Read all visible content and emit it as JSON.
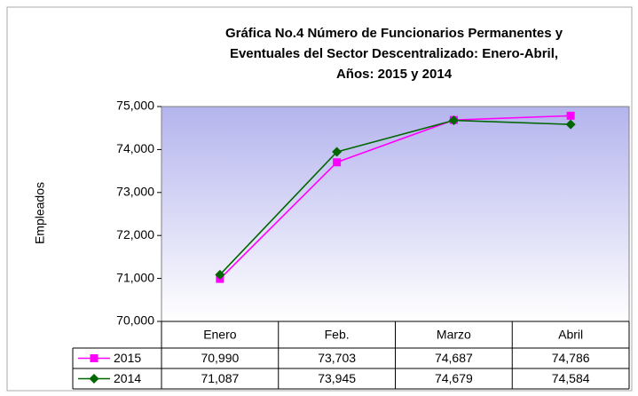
{
  "chart_data": {
    "type": "line",
    "title": [
      "Gráfica No.4  Número de Funcionarios Permanentes y",
      "Eventuales del Sector Descentralizado: Enero-Abril,",
      "Años: 2015 y 2014"
    ],
    "y_label": "Empleados",
    "categories": [
      "Enero",
      "Feb.",
      "Marzo",
      "Abril"
    ],
    "series": [
      {
        "name": "2015",
        "color": "#ff00ff",
        "marker": "square",
        "values": [
          70990,
          73703,
          74687,
          74786
        ],
        "value_labels": [
          "70,990",
          "73,703",
          "74,687",
          "74,786"
        ]
      },
      {
        "name": "2014",
        "color": "#006600",
        "marker": "diamond",
        "values": [
          71087,
          73945,
          74679,
          74584
        ],
        "value_labels": [
          "71,087",
          "73,945",
          "74,679",
          "74,584"
        ]
      }
    ],
    "ylim": [
      70000,
      75000
    ],
    "yticks": [
      {
        "value": 70000,
        "label": "70,000"
      },
      {
        "value": 71000,
        "label": "71,000"
      },
      {
        "value": 72000,
        "label": "72,000"
      },
      {
        "value": 73000,
        "label": "73,000"
      },
      {
        "value": 74000,
        "label": "74,000"
      },
      {
        "value": 75000,
        "label": "75,000"
      }
    ],
    "grid": false
  }
}
